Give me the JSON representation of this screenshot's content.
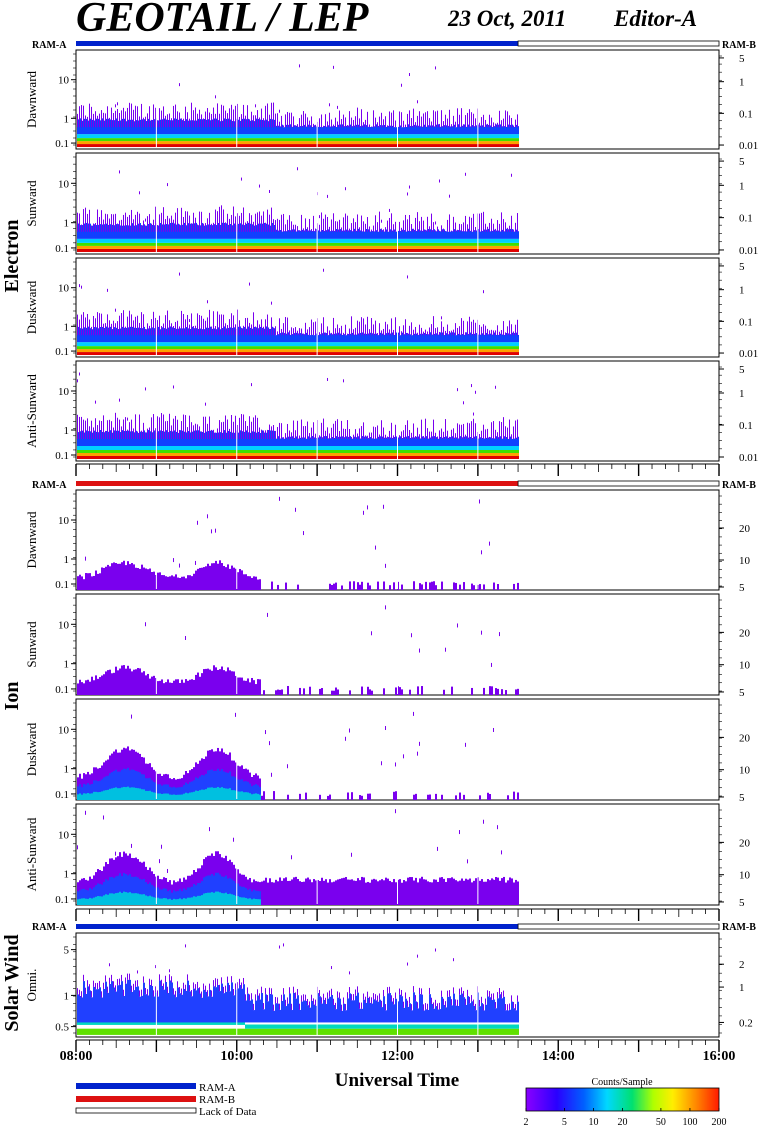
{
  "header": {
    "title": "GEOTAIL / LEP",
    "date": "23 Oct, 2011",
    "editor": "Editor-A"
  },
  "labels": {
    "ram_a": "RAM-A",
    "ram_b": "RAM-B",
    "electron": "Electron",
    "ion": "Ion",
    "solar_wind": "Solar Wind",
    "xlabel": "Universal Time"
  },
  "legend": {
    "ram_a": "RAM-A",
    "ram_b": "RAM-B",
    "lack": "Lack of Data",
    "ram_a_color": "#0022cc",
    "ram_b_color": "#dd1111"
  },
  "colorbar": {
    "title": "Counts/Sample",
    "ticks": [
      "2",
      "5",
      "10",
      "20",
      "50",
      "100",
      "200"
    ],
    "tick_values": [
      2,
      5,
      10,
      20,
      50,
      100,
      200
    ],
    "range": [
      2,
      200
    ],
    "scale": "log"
  },
  "chart_data": {
    "type": "heatmap",
    "x_axis": {
      "label": "Universal Time",
      "range": [
        "08:00",
        "16:00"
      ],
      "tick_labels": [
        "08:00",
        "10:00",
        "12:00",
        "14:00",
        "16:00"
      ],
      "data_end": "13:30"
    },
    "y_axis_scale": "log",
    "groups": [
      {
        "species": "Electron",
        "ram_bar": "RAM-A",
        "panels": [
          {
            "name": "Dawnward",
            "left_ticks": [
              "10",
              "1",
              "0.1"
            ],
            "right_ticks": [
              "5",
              "1",
              "0.1",
              "0.01"
            ]
          },
          {
            "name": "Sunward",
            "left_ticks": [
              "10",
              "1",
              "0.1"
            ],
            "right_ticks": [
              "5",
              "1",
              "0.1",
              "0.01"
            ]
          },
          {
            "name": "Duskward",
            "left_ticks": [
              "10",
              "1",
              "0.1"
            ],
            "right_ticks": [
              "5",
              "1",
              "0.1",
              "0.01"
            ]
          },
          {
            "name": "Anti-Sunward",
            "left_ticks": [
              "10",
              "1",
              "0.1"
            ],
            "right_ticks": [
              "5",
              "1",
              "0.1",
              "0.01"
            ]
          }
        ]
      },
      {
        "species": "Ion",
        "ram_bar": "RAM-B",
        "panels": [
          {
            "name": "Dawnward",
            "left_ticks": [
              "10",
              "1",
              "0.1"
            ],
            "right_ticks": [
              "20",
              "10",
              "5"
            ]
          },
          {
            "name": "Sunward",
            "left_ticks": [
              "10",
              "1",
              "0.1"
            ],
            "right_ticks": [
              "20",
              "10",
              "5"
            ]
          },
          {
            "name": "Duskward",
            "left_ticks": [
              "10",
              "1",
              "0.1"
            ],
            "right_ticks": [
              "20",
              "10",
              "5"
            ]
          },
          {
            "name": "Anti-Sunward",
            "left_ticks": [
              "10",
              "1",
              "0.1"
            ],
            "right_ticks": [
              "20",
              "10",
              "5"
            ]
          }
        ]
      },
      {
        "species": "Solar Wind",
        "ram_bar": "RAM-A",
        "panels": [
          {
            "name": "Omni.",
            "left_ticks": [
              "5",
              "1",
              "0.5"
            ],
            "right_ticks": [
              "2",
              "1",
              "0.2"
            ]
          }
        ]
      }
    ]
  }
}
